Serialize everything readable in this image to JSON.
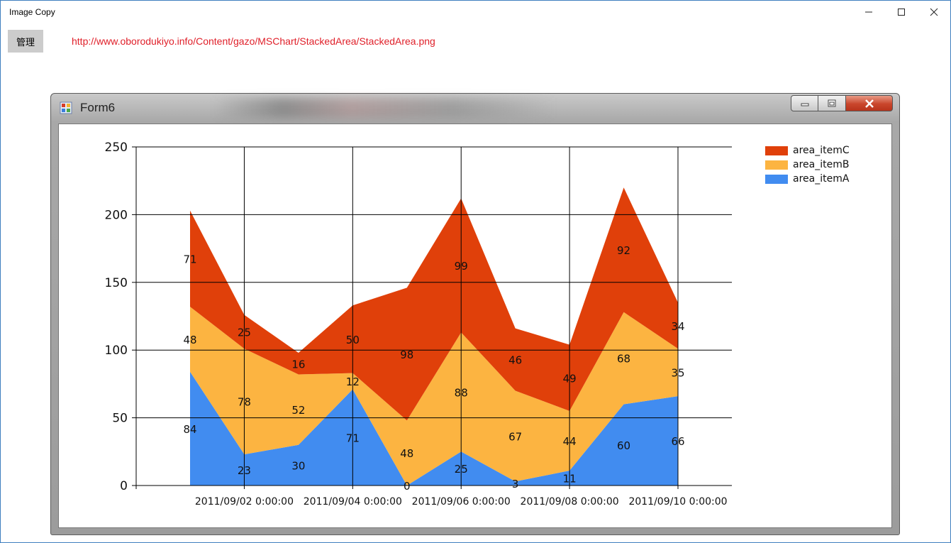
{
  "window": {
    "title": "Image Copy",
    "controls": {
      "minimize_icon": "minimize-icon",
      "maximize_icon": "maximize-icon",
      "close_icon": "close-icon"
    }
  },
  "toolbar": {
    "admin_button_label": "管理",
    "url": "http://www.oborodukiyo.info/Content/gazo/MSChart/StackedArea/StackedArea.png"
  },
  "screenshot": {
    "window_title": "Form6",
    "icon": "app-form-icon"
  },
  "chart_data": {
    "type": "area",
    "stacked": true,
    "x": [
      "2011/09/01",
      "2011/09/02",
      "2011/09/03",
      "2011/09/04",
      "2011/09/05",
      "2011/09/06",
      "2011/09/07",
      "2011/09/08",
      "2011/09/09",
      "2011/09/10"
    ],
    "x_tick_labels": [
      "2011/09/02 0:00:00",
      "2011/09/04 0:00:00",
      "2011/09/06 0:00:00",
      "2011/09/08 0:00:00",
      "2011/09/10 0:00:00"
    ],
    "y_ticks": [
      "0",
      "50",
      "100",
      "150",
      "200",
      "250"
    ],
    "ylim": [
      0,
      250
    ],
    "grid": true,
    "legend_position": "top-right",
    "series": [
      {
        "name": "area_itemA",
        "color": "#418cf0",
        "values": [
          84,
          23,
          30,
          71,
          0,
          25,
          3,
          11,
          60,
          66
        ]
      },
      {
        "name": "area_itemB",
        "color": "#fcb441",
        "values": [
          48,
          78,
          52,
          12,
          48,
          88,
          67,
          44,
          68,
          35
        ]
      },
      {
        "name": "area_itemC",
        "color": "#e0400a",
        "values": [
          71,
          25,
          16,
          50,
          98,
          99,
          46,
          49,
          92,
          34
        ]
      }
    ],
    "legend_order": [
      "area_itemC",
      "area_itemB",
      "area_itemA"
    ]
  }
}
